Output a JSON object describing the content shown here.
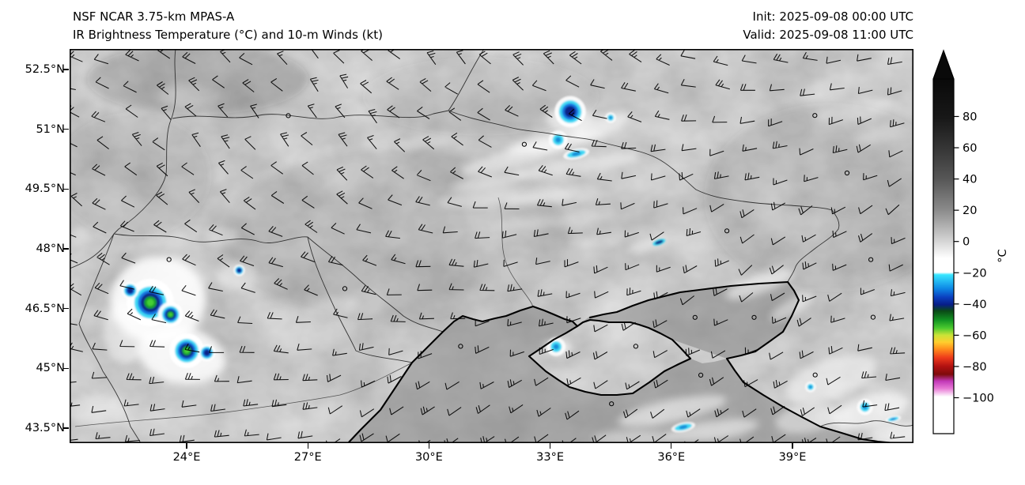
{
  "header": {
    "model": "NSF NCAR 3.75-km MPAS-A",
    "product": "IR Brightness Temperature (°C) and 10-m Winds (kt)",
    "init": "Init: 2025-09-08 00:00 UTC",
    "valid": "Valid: 2025-09-08 11:00 UTC"
  },
  "axes": {
    "lat_ticks": [
      "52.5°N",
      "51°N",
      "49.5°N",
      "48°N",
      "46.5°N",
      "45°N",
      "43.5°N"
    ],
    "lon_ticks": [
      "24°E",
      "27°E",
      "30°E",
      "33°E",
      "36°E",
      "39°E"
    ]
  },
  "colorbar": {
    "label": "°C",
    "ticks": [
      {
        "value": 80,
        "label": "80"
      },
      {
        "value": 60,
        "label": "60"
      },
      {
        "value": 40,
        "label": "40"
      },
      {
        "value": 20,
        "label": "20"
      },
      {
        "value": 0,
        "label": "0"
      },
      {
        "value": -20,
        "label": "−20"
      },
      {
        "value": -40,
        "label": "−40"
      },
      {
        "value": -60,
        "label": "−60"
      },
      {
        "value": -80,
        "label": "−80"
      },
      {
        "value": -100,
        "label": "−100"
      }
    ],
    "gradient_stops": [
      {
        "o": 0.0,
        "c": "#0a0a0a"
      },
      {
        "o": 0.11,
        "c": "#181818"
      },
      {
        "o": 0.2,
        "c": "#373737"
      },
      {
        "o": 0.285,
        "c": "#585858"
      },
      {
        "o": 0.37,
        "c": "#8b8b8b"
      },
      {
        "o": 0.46,
        "c": "#d7d7d7"
      },
      {
        "o": 0.505,
        "c": "#ffffff"
      },
      {
        "o": 0.545,
        "c": "#ffffff"
      },
      {
        "o": 0.552,
        "c": "#38e6ff"
      },
      {
        "o": 0.59,
        "c": "#0e8ae6"
      },
      {
        "o": 0.615,
        "c": "#0b40c0"
      },
      {
        "o": 0.636,
        "c": "#071d88"
      },
      {
        "o": 0.654,
        "c": "#0a4a16"
      },
      {
        "o": 0.68,
        "c": "#129422"
      },
      {
        "o": 0.702,
        "c": "#4ac92f"
      },
      {
        "o": 0.722,
        "c": "#c9e338"
      },
      {
        "o": 0.742,
        "c": "#ffce2e"
      },
      {
        "o": 0.762,
        "c": "#ff8c1c"
      },
      {
        "o": 0.786,
        "c": "#ee3a1b"
      },
      {
        "o": 0.81,
        "c": "#b21111"
      },
      {
        "o": 0.833,
        "c": "#7e0b0b"
      },
      {
        "o": 0.852,
        "c": "#c238b8"
      },
      {
        "o": 0.873,
        "c": "#e87ad6"
      },
      {
        "o": 0.896,
        "c": "#ffffff"
      },
      {
        "o": 1.0,
        "c": "#ffffff"
      }
    ]
  },
  "storm_cells": [
    {
      "lon": 23.1,
      "lat": 46.7,
      "type": "severe",
      "size": 15
    },
    {
      "lon": 23.6,
      "lat": 46.4,
      "type": "severe",
      "size": 8
    },
    {
      "lon": 24.0,
      "lat": 45.5,
      "type": "severe",
      "size": 11
    },
    {
      "lon": 24.5,
      "lat": 45.45,
      "type": "deep",
      "size": 6
    },
    {
      "lon": 22.6,
      "lat": 47.0,
      "type": "deep",
      "size": 6
    },
    {
      "lon": 25.3,
      "lat": 47.5,
      "type": "deep",
      "size": 4
    },
    {
      "lon": 33.5,
      "lat": 51.45,
      "type": "deep",
      "size": 11
    },
    {
      "lon": 33.2,
      "lat": 50.75,
      "type": "cyan",
      "size": 7
    },
    {
      "lon": 33.65,
      "lat": 50.4,
      "type": "cyanstreak",
      "size": 12
    },
    {
      "lon": 34.5,
      "lat": 51.3,
      "type": "cyan",
      "size": 4
    },
    {
      "lon": 35.7,
      "lat": 48.2,
      "type": "deepdash",
      "size": 7
    },
    {
      "lon": 33.15,
      "lat": 45.6,
      "type": "cyan",
      "size": 7
    },
    {
      "lon": 36.3,
      "lat": 43.6,
      "type": "cyanstreak",
      "size": 11
    },
    {
      "lon": 39.45,
      "lat": 44.6,
      "type": "cyan",
      "size": 4
    },
    {
      "lon": 40.8,
      "lat": 44.1,
      "type": "cyan",
      "size": 6
    },
    {
      "lon": 41.5,
      "lat": 43.8,
      "type": "cyanstreak",
      "size": 7
    }
  ]
}
